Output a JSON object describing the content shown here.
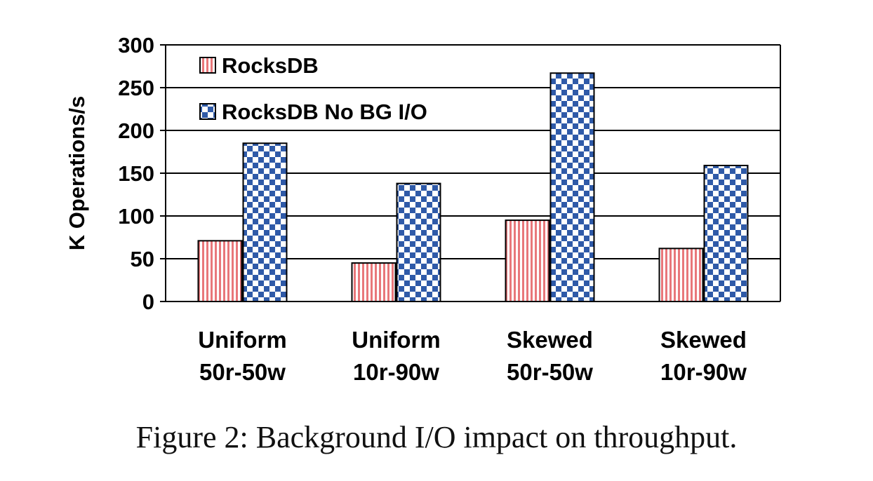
{
  "chart_data": {
    "type": "bar",
    "ylabel": "K Operations/s",
    "ylim": [
      0,
      300
    ],
    "yticks": [
      0,
      50,
      100,
      150,
      200,
      250,
      300
    ],
    "grid": true,
    "legend_position": "top-left",
    "categories": [
      [
        "Uniform",
        "50r-50w"
      ],
      [
        "Uniform",
        "10r-90w"
      ],
      [
        "Skewed",
        "50r-50w"
      ],
      [
        "Skewed",
        "10r-90w"
      ]
    ],
    "series": [
      {
        "name": "RocksDB",
        "values": [
          71,
          45,
          95,
          62
        ],
        "color": "#e8777a",
        "pattern": "vertical-stripes"
      },
      {
        "name": "RocksDB No BG I/O",
        "values": [
          185,
          138,
          267,
          159
        ],
        "color": "#2f5aa8",
        "pattern": "checkerboard"
      }
    ]
  },
  "caption": "Figure 2: Background I/O impact on throughput."
}
